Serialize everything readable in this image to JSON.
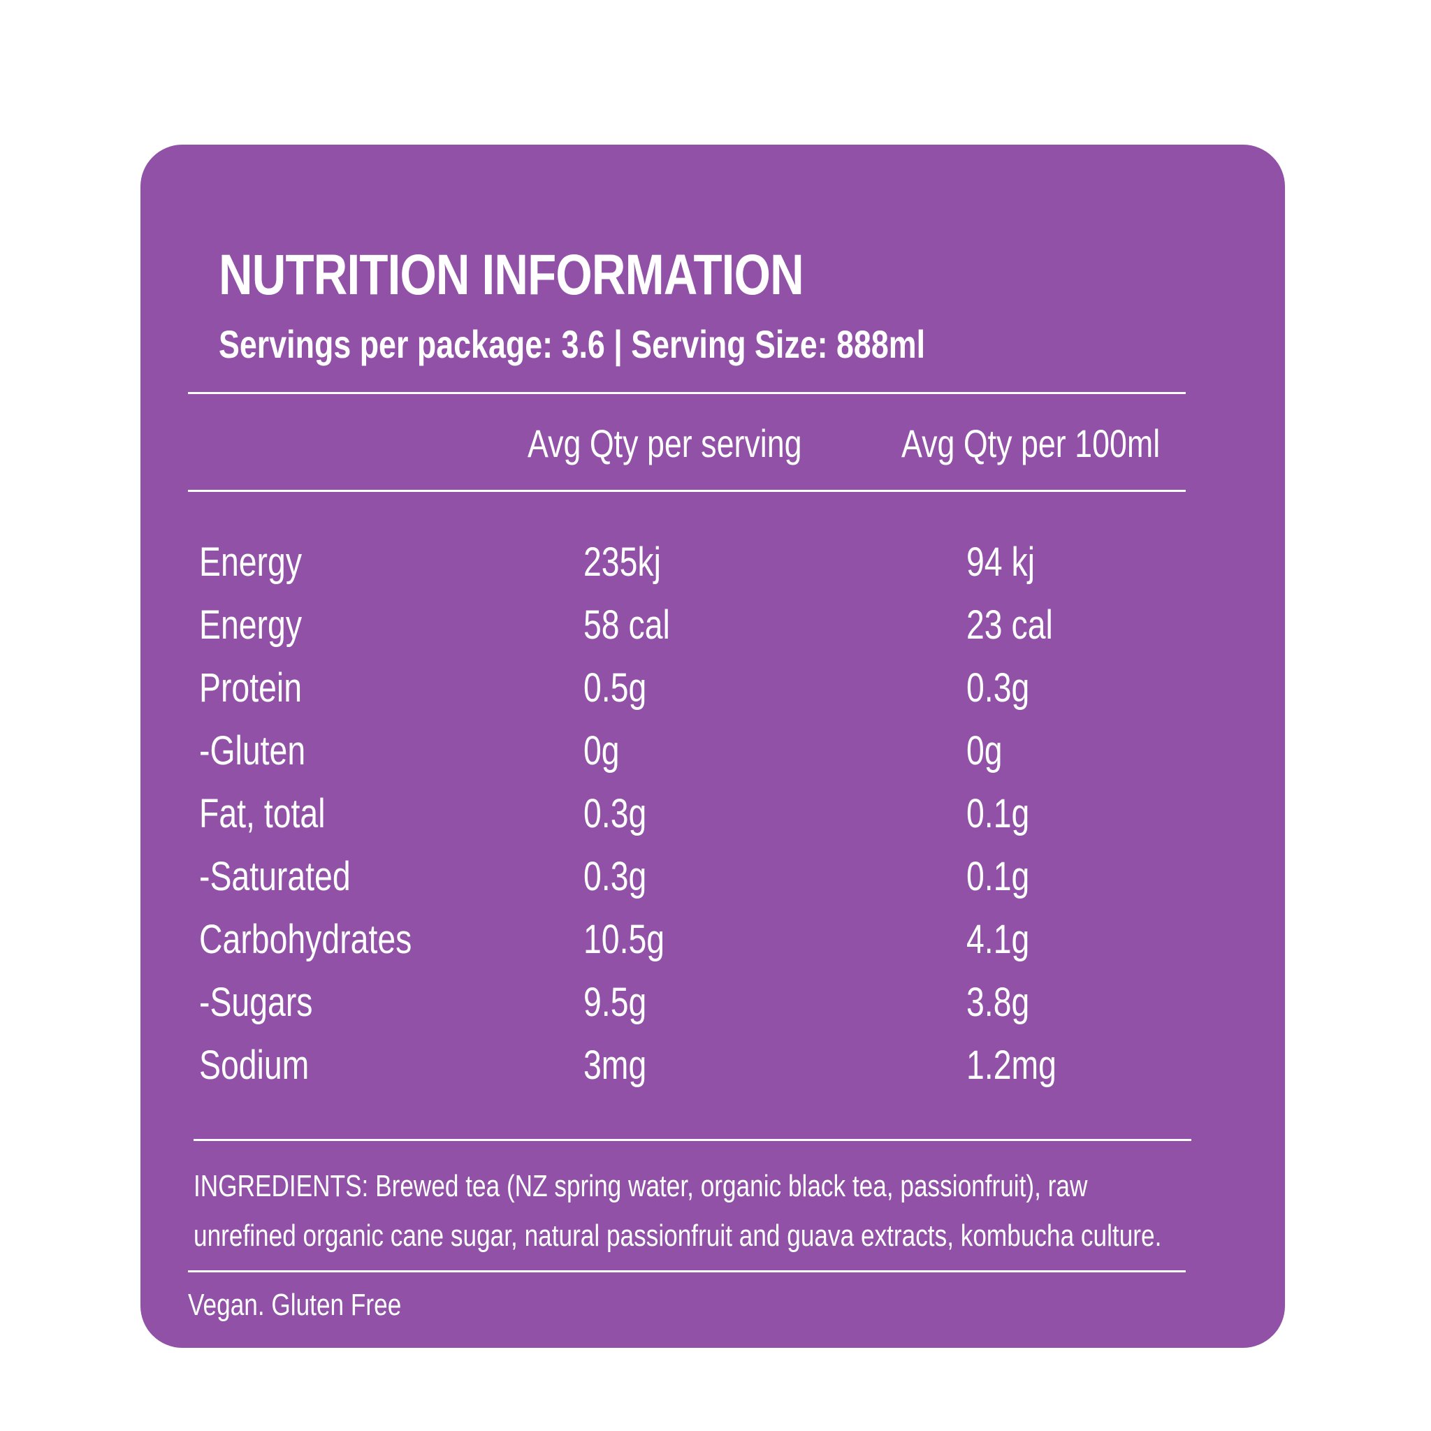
{
  "panel": {
    "background_color": "#9151a7",
    "text_color": "#ffffff"
  },
  "header": {
    "title": "NUTRITION INFORMATION",
    "subtitle": "Servings per package: 3.6 | Serving Size: 888ml"
  },
  "table": {
    "columns": [
      "",
      "Avg Qty per serving",
      "Avg Qty per 100ml"
    ],
    "rows": [
      {
        "name": "Energy",
        "per_serving": "235kj",
        "per_100ml": "94 kj"
      },
      {
        "name": "Energy",
        "per_serving": "58 cal",
        "per_100ml": "23 cal"
      },
      {
        "name": "Protein",
        "per_serving": "0.5g",
        "per_100ml": "0.3g"
      },
      {
        "name": "-Gluten",
        "per_serving": "0g",
        "per_100ml": "0g"
      },
      {
        "name": "Fat, total",
        "per_serving": "0.3g",
        "per_100ml": "0.1g"
      },
      {
        "name": "-Saturated",
        "per_serving": "0.3g",
        "per_100ml": "0.1g"
      },
      {
        "name": "Carbohydrates",
        "per_serving": "10.5g",
        "per_100ml": "4.1g"
      },
      {
        "name": "-Sugars",
        "per_serving": "9.5g",
        "per_100ml": "3.8g"
      },
      {
        "name": "Sodium",
        "per_serving": "3mg",
        "per_100ml": "1.2mg"
      }
    ]
  },
  "ingredients": {
    "line_1": "INGREDIENTS: Brewed tea (NZ spring water, organic black tea, passionfruit), raw",
    "line_2": "unrefined organic cane sugar, natural passionfruit and guava extracts, kombucha culture."
  },
  "footer": {
    "note": "Vegan. Gluten Free"
  }
}
